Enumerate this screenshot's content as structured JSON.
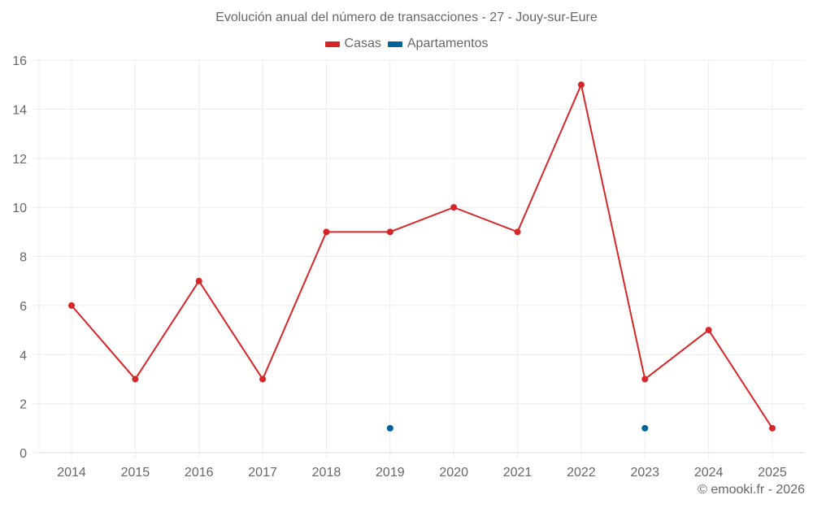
{
  "chart_data": {
    "type": "line",
    "title": "Evolución anual del número de transacciones - 27 - Jouy-sur-Eure",
    "xlabel": "",
    "ylabel": "",
    "categories": [
      "2014",
      "2015",
      "2016",
      "2017",
      "2018",
      "2019",
      "2020",
      "2021",
      "2022",
      "2023",
      "2024",
      "2025"
    ],
    "series": [
      {
        "name": "Casas",
        "color": "#d62728",
        "values": [
          6,
          3,
          7,
          3,
          9,
          9,
          10,
          9,
          15,
          3,
          5,
          1
        ]
      },
      {
        "name": "Apartamentos",
        "color": "#00649b",
        "values": [
          null,
          null,
          null,
          null,
          null,
          1,
          null,
          null,
          null,
          1,
          null,
          null
        ]
      }
    ],
    "ylim": [
      0,
      16
    ],
    "yticks": [
      0,
      2,
      4,
      6,
      8,
      10,
      12,
      14,
      16
    ],
    "grid": true,
    "legend_position": "top"
  },
  "header": {
    "title": "Evolución anual del número de transacciones - 27 - Jouy-sur-Eure"
  },
  "legend": {
    "items": [
      {
        "label": "Casas",
        "color": "#d62728"
      },
      {
        "label": "Apartamentos",
        "color": "#00649b"
      }
    ]
  },
  "footer": {
    "credit": "© emooki.fr - 2026"
  }
}
